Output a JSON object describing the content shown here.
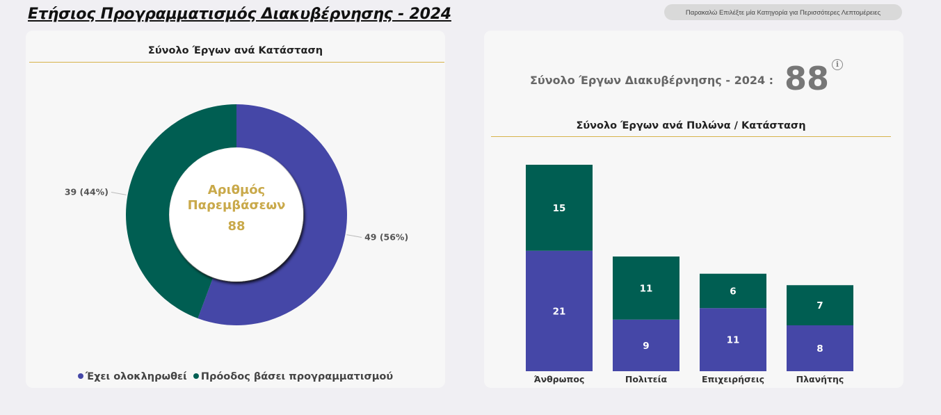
{
  "page": {
    "title": "Ετήσιος Προγραμματισμός Διακυβέρνησης - 2024",
    "hint_button": "Παρακαλώ Επιλέξτε μία Κατηγορία για Περισσότερες Λεπτομέρειες"
  },
  "colors": {
    "completed": "#4547a7",
    "in_progress": "#005e52",
    "accent": "#d6b34a",
    "center_text": "#c9a94a"
  },
  "kpi": {
    "label": "Σύνολο Έργων Διακυβέρνησης - 2024 :",
    "value": "88",
    "info_icon": "info-icon"
  },
  "donut": {
    "title": "Σύνολο Έργων ανά Κατάσταση",
    "center_label_line1": "Αριθμός",
    "center_label_line2": "Παρεμβάσεων",
    "center_value": "88",
    "legend": [
      {
        "label": "Έχει ολοκληρωθεί"
      },
      {
        "label": "Πρόοδος βάσει προγραμματισμού"
      }
    ]
  },
  "bars": {
    "title": "Σύνολο Έργων ανά Πυλώνα / Κατάσταση"
  },
  "chart_data": [
    {
      "type": "pie",
      "title": "Σύνολο Έργων ανά Κατάσταση",
      "categories": [
        "Έχει ολοκληρωθεί",
        "Πρόοδος βάσει προγραμματισμού"
      ],
      "values": [
        49,
        39
      ],
      "data_labels": [
        "49 (56%)",
        "39 (44%)"
      ],
      "legend_position": "bottom"
    },
    {
      "type": "bar",
      "stacked": true,
      "title": "Σύνολο Έργων ανά Πυλώνα / Κατάσταση",
      "categories": [
        "Άνθρωπος",
        "Πολιτεία",
        "Επιχειρήσεις",
        "Πλανήτης"
      ],
      "series": [
        {
          "name": "Έχει ολοκληρωθεί",
          "values": [
            21,
            9,
            11,
            8
          ]
        },
        {
          "name": "Πρόοδος βάσει προγραμματισμού",
          "values": [
            15,
            11,
            6,
            7
          ]
        }
      ],
      "ylim": [
        0,
        36
      ],
      "grid": false
    }
  ]
}
